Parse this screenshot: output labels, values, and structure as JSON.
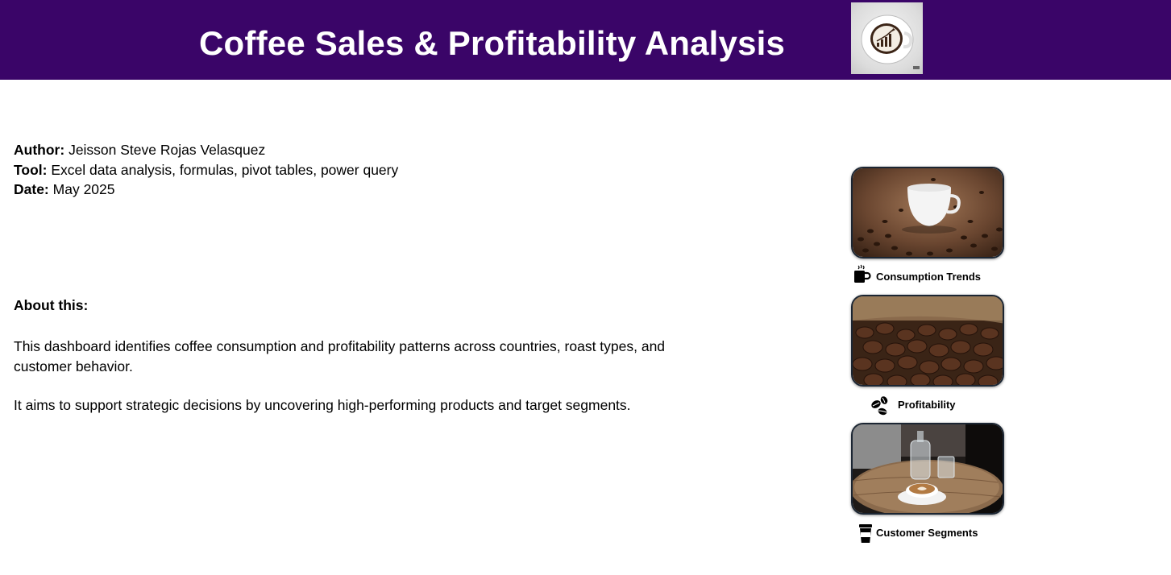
{
  "header": {
    "title": "Coffee Sales & Profitability Analysis"
  },
  "meta": {
    "author_label": "Author:",
    "author": "Jeisson Steve Rojas Velasquez",
    "tool_label": "Tool:",
    "tool": "Excel  data analysis, formulas, pivot tables, power query",
    "date_label": "Date:",
    "date": "May 2025"
  },
  "about": {
    "heading": "About this:",
    "paragraph1": "This dashboard identifies coffee consumption and profitability patterns across countries, roast types, and customer behavior.",
    "paragraph2": "It aims to support strategic decisions by uncovering high-performing products and target segments."
  },
  "nav": {
    "items": [
      {
        "label": "Consumption Trends",
        "icon": "coffee-mug-icon"
      },
      {
        "label": "Profitability",
        "icon": "coffee-beans-icon"
      },
      {
        "label": "Customer Segments",
        "icon": "takeaway-cup-icon"
      }
    ]
  },
  "colors": {
    "header_bg": "#3a0568",
    "header_text": "#ffffff",
    "card_border": "#1c2633"
  }
}
